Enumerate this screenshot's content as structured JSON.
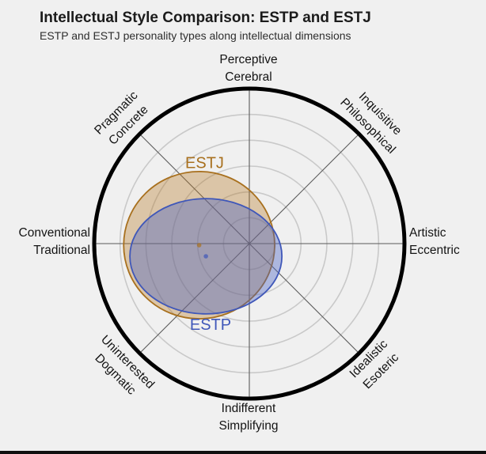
{
  "header": {
    "title": "Intellectual Style Comparison: ESTP and ESTJ",
    "subtitle": "ESTP and ESTJ personality types along intellectual dimensions"
  },
  "colors": {
    "background": "#f0f0f0",
    "title_text": "#1b1b1b",
    "axis_text": "#141414",
    "estj_accent": "#a8701e",
    "estp_accent": "#3f57b9"
  },
  "chart_data": {
    "type": "scatter",
    "variant": "polar-ellipse-comparison",
    "title": "Intellectual Style Comparison: ESTP and ESTJ",
    "subtitle": "ESTP and ESTJ personality types along intellectual dimensions",
    "layout": {
      "center_x": 315,
      "center_y": 308,
      "outer_radius": 196,
      "num_rings": 6,
      "grid": true,
      "ring_color": "#c9c9c9",
      "outer_ring_color": "#000000",
      "spoke_color": "#5a5a5a",
      "legend": "inline-labels"
    },
    "scale": {
      "units_per_ring": 1,
      "max": 6
    },
    "axes": [
      {
        "direction": "top",
        "line1": "Perceptive",
        "line2": "Cerebral"
      },
      {
        "direction": "top-right",
        "line1": "Inquisitive",
        "line2": "Philosophical"
      },
      {
        "direction": "right",
        "line1": "Artistic",
        "line2": "Eccentric"
      },
      {
        "direction": "bottom-right",
        "line1": "Idealistic",
        "line2": "Esoteric"
      },
      {
        "direction": "bottom",
        "line1": "Indifferent",
        "line2": "Simplifying"
      },
      {
        "direction": "bottom-left",
        "line1": "Uninterested",
        "line2": "Dogmatic"
      },
      {
        "direction": "left",
        "line1": "Conventional",
        "line2": "Traditional"
      },
      {
        "direction": "top-left",
        "line1": "Pragmatic",
        "line2": "Concrete"
      }
    ],
    "series": [
      {
        "name": "ESTJ",
        "color": "#a8701e",
        "fill_rgba": "rgba(181,118,32,0.35)",
        "center_offset_units": {
          "x": -1.94,
          "y": 0.06
        },
        "radius_units": {
          "x": 2.92,
          "y": 2.85
        },
        "label_offset_units": {
          "x": -1.73,
          "y": -3.09
        }
      },
      {
        "name": "ESTP",
        "color": "#3f57b9",
        "fill_rgba": "rgba(72,98,196,0.40)",
        "center_offset_units": {
          "x": -1.68,
          "y": 0.49
        },
        "radius_units": {
          "x": 2.94,
          "y": 2.23
        },
        "label_offset_units": {
          "x": -1.5,
          "y": 3.18
        }
      }
    ]
  }
}
